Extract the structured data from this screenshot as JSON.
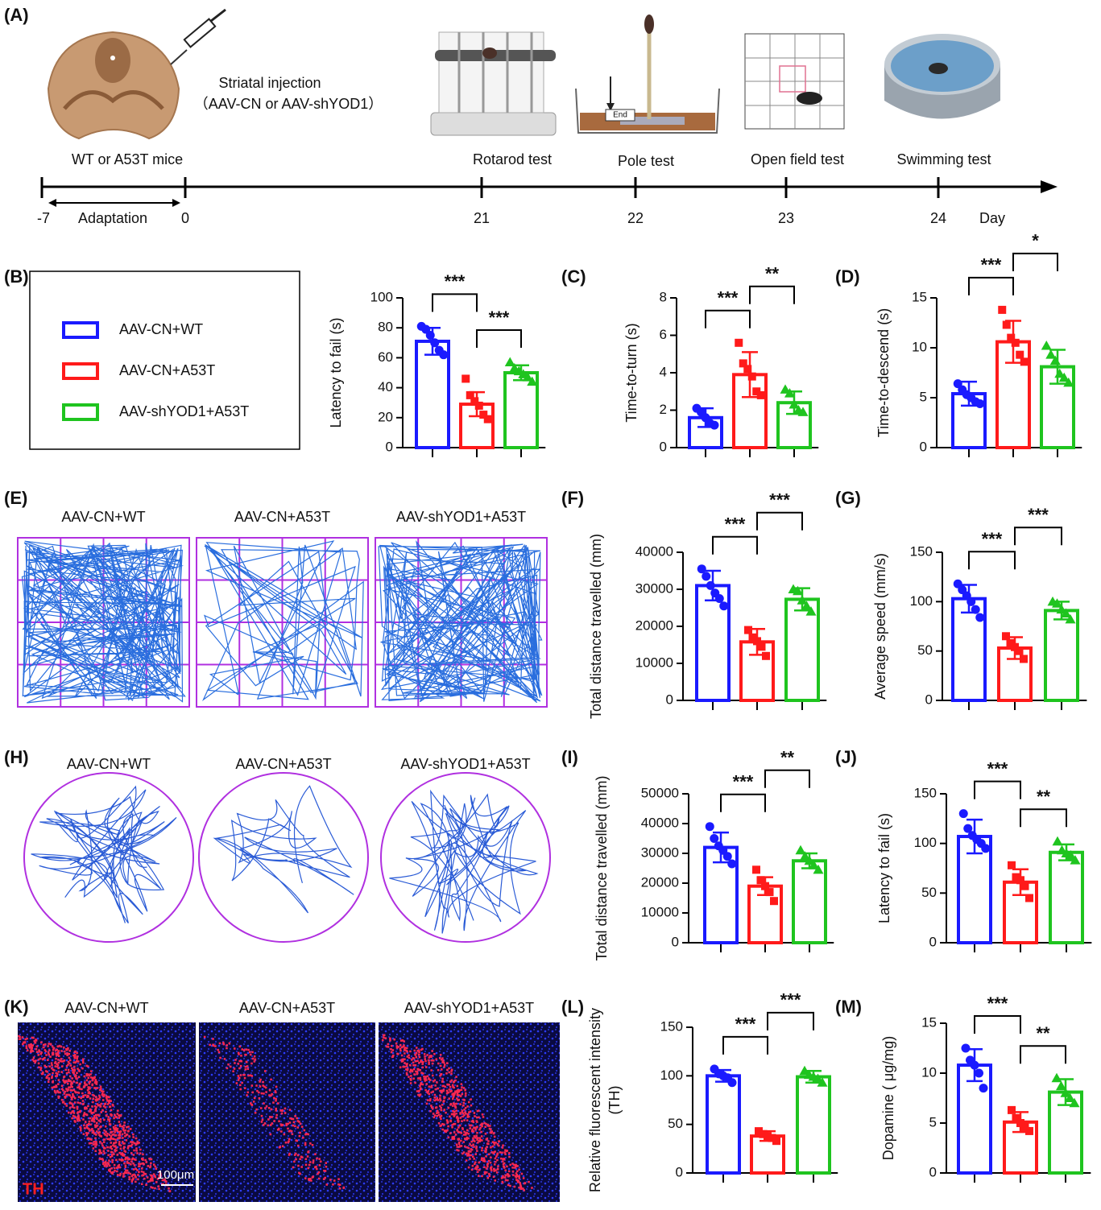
{
  "timeline": {
    "label": "(A)",
    "injection": "Striatal injection",
    "injection_detail": "（AAV-CN or AAV-shYOD1）",
    "days": [
      -7,
      0,
      21,
      22,
      23,
      24
    ],
    "events": [
      "WT or A53T mice",
      "Rotarod test",
      "Pole test",
      "Open field test",
      "Swimming test"
    ],
    "period": "Adaptation",
    "unit": "Day",
    "pole_sign": "End"
  },
  "legend": [
    {
      "name": "AAV-CN+WT",
      "color": "#1a1aff",
      "marker": "circle"
    },
    {
      "name": "AAV-CN+A53T",
      "color": "#ff1a1a",
      "marker": "square"
    },
    {
      "name": "AAV-shYOD1+A53T",
      "color": "#1fc41f",
      "marker": "triangle"
    }
  ],
  "open_field": {
    "label": "(E)",
    "titles": [
      "AAV-CN+WT",
      "AAV-CN+A53T",
      "AAV-shYOD1+A53T"
    ]
  },
  "swimming": {
    "label": "(H)",
    "titles": [
      "AAV-CN+WT",
      "AAV-CN+A53T",
      "AAV-shYOD1+A53T"
    ]
  },
  "staining": {
    "label": "(K)",
    "titles": [
      "AAV-CN+WT",
      "AAV-CN+A53T",
      "AAV-shYOD1+A53T"
    ],
    "stain": "TH",
    "scale": "100μm"
  },
  "chart_data": [
    {
      "type": "bar",
      "panel": "(B)",
      "ylabel": "Latency to fail (s)",
      "ylim": [
        0,
        100
      ],
      "yticks": [
        0,
        20,
        40,
        60,
        80,
        100
      ],
      "values": [
        71,
        29,
        50
      ],
      "errors": [
        9,
        8,
        5
      ],
      "points": [
        [
          81,
          79,
          75,
          70,
          65,
          62
        ],
        [
          46,
          35,
          31,
          28,
          22,
          19
        ],
        [
          57,
          53,
          51,
          49,
          47,
          44
        ]
      ],
      "brackets": [
        {
          "pair": [
            0,
            1
          ],
          "label": "***"
        },
        {
          "pair": [
            1,
            2
          ],
          "label": "***"
        }
      ]
    },
    {
      "type": "bar",
      "panel": "(C)",
      "ylabel": "Time-to-turn (s)",
      "ylim": [
        0,
        8
      ],
      "yticks": [
        0,
        2,
        4,
        6,
        8
      ],
      "values": [
        1.6,
        3.9,
        2.4
      ],
      "errors": [
        0.5,
        1.2,
        0.6
      ],
      "points": [
        [
          2.1,
          1.9,
          1.6,
          1.3,
          1.2
        ],
        [
          5.6,
          4.5,
          4.2,
          3.8,
          3.0,
          2.8
        ],
        [
          3.1,
          2.9,
          2.3,
          2.0,
          1.9
        ]
      ],
      "brackets": [
        {
          "pair": [
            0,
            1
          ],
          "label": "***"
        },
        {
          "pair": [
            1,
            2
          ],
          "label": "**"
        }
      ]
    },
    {
      "type": "bar",
      "panel": "(D)",
      "ylabel": "Time-to-descend (s)",
      "ylim": [
        0,
        15
      ],
      "yticks": [
        0,
        5,
        10,
        15
      ],
      "values": [
        5.4,
        10.6,
        8.1
      ],
      "errors": [
        1.2,
        2.1,
        1.7
      ],
      "points": [
        [
          6.4,
          5.8,
          5.3,
          5.0,
          4.6,
          4.4
        ],
        [
          13.8,
          12.3,
          11.0,
          10.5,
          9.3,
          8.6
        ],
        [
          10.2,
          9.3,
          8.7,
          7.4,
          7.0,
          6.5
        ]
      ],
      "brackets": [
        {
          "pair": [
            0,
            1
          ],
          "label": "***"
        },
        {
          "pair": [
            1,
            2
          ],
          "label": "*"
        }
      ]
    },
    {
      "type": "bar",
      "panel": "(F)",
      "ylabel": "Total distance travelled (mm)",
      "ylim": [
        0,
        40000
      ],
      "yticks": [
        0,
        10000,
        20000,
        30000,
        40000
      ],
      "values": [
        31000,
        15800,
        27300
      ],
      "errors": [
        4000,
        3500,
        3000
      ],
      "points": [
        [
          35500,
          33500,
          31000,
          29000,
          27500,
          25500
        ],
        [
          19000,
          17000,
          16000,
          14500,
          12000
        ],
        [
          30000,
          29500,
          27000,
          25500,
          24000
        ]
      ],
      "brackets": [
        {
          "pair": [
            0,
            1
          ],
          "label": "***"
        },
        {
          "pair": [
            1,
            2
          ],
          "label": "***"
        }
      ]
    },
    {
      "type": "bar",
      "panel": "(G)",
      "ylabel": "Average speed (mm/s)",
      "ylim": [
        0,
        150
      ],
      "yticks": [
        0,
        50,
        100,
        150
      ],
      "values": [
        103,
        53,
        91
      ],
      "errors": [
        14,
        11,
        9
      ],
      "points": [
        [
          118,
          112,
          106,
          100,
          92,
          84
        ],
        [
          65,
          58,
          54,
          50,
          42
        ],
        [
          100,
          98,
          92,
          88,
          82
        ]
      ],
      "brackets": [
        {
          "pair": [
            0,
            1
          ],
          "label": "***"
        },
        {
          "pair": [
            1,
            2
          ],
          "label": "***"
        }
      ]
    },
    {
      "type": "bar",
      "panel": "(I)",
      "ylabel": "Total distance travelled (mm)",
      "ylim": [
        0,
        50000
      ],
      "yticks": [
        0,
        10000,
        20000,
        30000,
        40000,
        50000
      ],
      "values": [
        32000,
        19000,
        27500
      ],
      "errors": [
        5000,
        3000,
        2500
      ],
      "points": [
        [
          39000,
          35000,
          32500,
          31000,
          29000,
          26500
        ],
        [
          24500,
          21000,
          19000,
          17000,
          14000
        ],
        [
          31000,
          29000,
          27500,
          26000,
          24500
        ]
      ],
      "brackets": [
        {
          "pair": [
            0,
            1
          ],
          "label": "***"
        },
        {
          "pair": [
            1,
            2
          ],
          "label": "**"
        }
      ]
    },
    {
      "type": "bar",
      "panel": "(J)",
      "ylabel": "Latency to fail (s)",
      "ylim": [
        0,
        150
      ],
      "yticks": [
        0,
        50,
        100,
        150
      ],
      "values": [
        107,
        61,
        91
      ],
      "errors": [
        17,
        13,
        8
      ],
      "points": [
        [
          130,
          115,
          108,
          104,
          100,
          95
        ],
        [
          78,
          66,
          63,
          57,
          45
        ],
        [
          102,
          93,
          90,
          88,
          83
        ]
      ],
      "brackets": [
        {
          "pair": [
            0,
            1
          ],
          "label": "***"
        },
        {
          "pair": [
            1,
            2
          ],
          "label": "**"
        }
      ]
    },
    {
      "type": "bar",
      "panel": "(L)",
      "ylabel": [
        "Relative fluorescent intensity",
        "(TH)"
      ],
      "ylim": [
        0,
        150
      ],
      "yticks": [
        0,
        50,
        100,
        150
      ],
      "values": [
        100,
        38,
        99
      ],
      "errors": [
        6,
        5,
        6
      ],
      "points": [
        [
          107,
          102,
          100,
          98,
          93
        ],
        [
          43,
          40,
          38,
          36,
          33
        ],
        [
          105,
          101,
          99,
          97,
          93
        ]
      ],
      "brackets": [
        {
          "pair": [
            0,
            1
          ],
          "label": "***"
        },
        {
          "pair": [
            1,
            2
          ],
          "label": "***"
        }
      ]
    },
    {
      "type": "bar",
      "panel": "(M)",
      "ylabel": "Dopamine ( μg/mg)",
      "ylim": [
        0,
        15
      ],
      "yticks": [
        0,
        5,
        10,
        15
      ],
      "values": [
        10.8,
        5.1,
        8.1
      ],
      "errors": [
        1.6,
        1.0,
        1.3
      ],
      "points": [
        [
          12.5,
          11.3,
          10.8,
          10.0,
          8.5
        ],
        [
          6.3,
          5.5,
          5.0,
          4.6,
          4.2
        ],
        [
          9.5,
          8.7,
          8.0,
          7.5,
          7.0
        ]
      ],
      "brackets": [
        {
          "pair": [
            0,
            1
          ],
          "label": "***"
        },
        {
          "pair": [
            1,
            2
          ],
          "label": "**"
        }
      ]
    }
  ]
}
